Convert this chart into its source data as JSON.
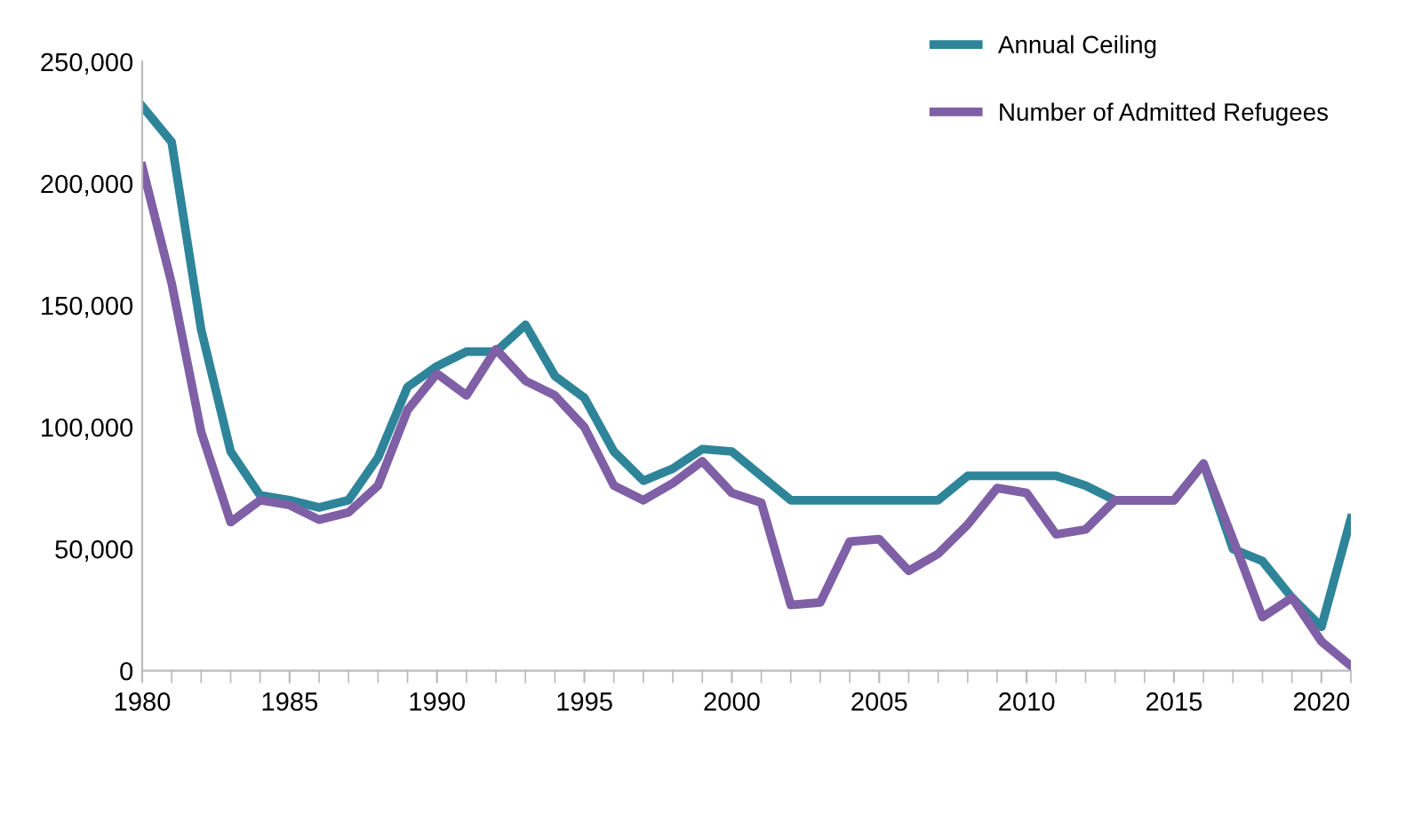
{
  "chart_data": {
    "type": "line",
    "x": [
      1980,
      1981,
      1982,
      1983,
      1984,
      1985,
      1986,
      1987,
      1988,
      1989,
      1990,
      1991,
      1992,
      1993,
      1994,
      1995,
      1996,
      1997,
      1998,
      1999,
      2000,
      2001,
      2002,
      2003,
      2004,
      2005,
      2006,
      2007,
      2008,
      2009,
      2010,
      2011,
      2012,
      2013,
      2014,
      2015,
      2016,
      2017,
      2018,
      2019,
      2020,
      2021
    ],
    "series": [
      {
        "name": "Annual Ceiling",
        "color": "#2e8599",
        "values": [
          231700,
          217000,
          140000,
          90000,
          72000,
          70000,
          67000,
          70000,
          87500,
          116500,
          125000,
          131000,
          131000,
          142000,
          121000,
          112000,
          90000,
          78000,
          83000,
          91000,
          90000,
          80000,
          70000,
          70000,
          70000,
          70000,
          70000,
          70000,
          80000,
          80000,
          80000,
          80000,
          76000,
          70000,
          70000,
          70000,
          85000,
          50000,
          45000,
          30000,
          18000,
          62500
        ]
      },
      {
        "name": "Number of Admitted Refugees",
        "color": "#7f5fa6",
        "values": [
          207000,
          159000,
          98000,
          61000,
          70000,
          68000,
          62000,
          65000,
          76000,
          107000,
          122000,
          113000,
          132000,
          119000,
          113000,
          100000,
          76000,
          70000,
          77000,
          86000,
          73000,
          69000,
          27000,
          28000,
          53000,
          54000,
          41000,
          48000,
          60000,
          75000,
          73000,
          56000,
          58000,
          70000,
          70000,
          70000,
          85000,
          54000,
          22000,
          30000,
          12000,
          2000
        ]
      }
    ],
    "xlim": [
      1980,
      2021
    ],
    "xticks": [
      1980,
      1985,
      1990,
      1995,
      2000,
      2005,
      2010,
      2015,
      2020
    ],
    "ylim": [
      0,
      250000
    ],
    "yticks": [
      {
        "value": 0,
        "label": "0"
      },
      {
        "value": 50000,
        "label": "50,000"
      },
      {
        "value": 100000,
        "label": "100,000"
      },
      {
        "value": 150000,
        "label": "150,000"
      },
      {
        "value": 200000,
        "label": "200,000"
      },
      {
        "value": 250000,
        "label": "250,000"
      }
    ],
    "grid": false,
    "legend": "top right",
    "marker": "none",
    "line_style": "solid"
  }
}
